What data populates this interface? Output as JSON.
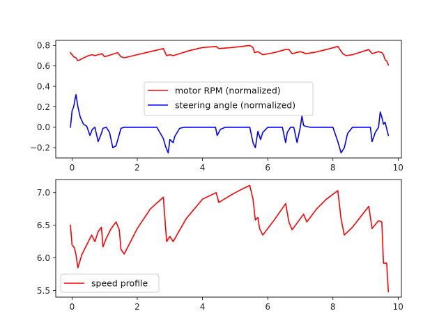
{
  "chart_data": [
    {
      "type": "line",
      "xlim": [
        -0.5,
        10.1
      ],
      "ylim": [
        -0.3,
        0.85
      ],
      "x_ticks": [
        0,
        2,
        4,
        6,
        8,
        10
      ],
      "x_tick_labels": [
        "0",
        "2",
        "4",
        "6",
        "8",
        "10"
      ],
      "y_ticks": [
        -0.2,
        0.0,
        0.2,
        0.4,
        0.6,
        0.8
      ],
      "y_tick_labels": [
        "−0.2",
        "0.0",
        "0.2",
        "0.4",
        "0.6",
        "0.8"
      ],
      "grid": false,
      "legend_position": "center",
      "series": [
        {
          "name": "motor RPM (normalized)",
          "color": "#ff0000",
          "x": [
            -0.05,
            0.0,
            0.05,
            0.12,
            0.18,
            0.3,
            0.5,
            0.62,
            0.7,
            0.8,
            0.92,
            1.0,
            1.2,
            1.4,
            1.5,
            1.6,
            2.0,
            2.4,
            2.8,
            2.9,
            3.0,
            3.1,
            3.3,
            3.6,
            4.0,
            4.42,
            4.5,
            4.9,
            5.2,
            5.45,
            5.55,
            5.6,
            5.7,
            5.85,
            6.2,
            6.55,
            6.65,
            6.75,
            7.0,
            7.1,
            7.15,
            7.4,
            7.8,
            8.15,
            8.3,
            8.4,
            8.6,
            9.1,
            9.2,
            9.4,
            9.5,
            9.55,
            9.6,
            9.65,
            9.7
          ],
          "values": [
            0.73,
            0.71,
            0.69,
            0.68,
            0.65,
            0.67,
            0.7,
            0.71,
            0.7,
            0.71,
            0.72,
            0.69,
            0.71,
            0.73,
            0.69,
            0.68,
            0.71,
            0.74,
            0.77,
            0.7,
            0.71,
            0.7,
            0.72,
            0.75,
            0.78,
            0.79,
            0.77,
            0.78,
            0.79,
            0.8,
            0.78,
            0.73,
            0.74,
            0.71,
            0.73,
            0.76,
            0.76,
            0.72,
            0.74,
            0.73,
            0.72,
            0.73,
            0.76,
            0.79,
            0.72,
            0.7,
            0.71,
            0.76,
            0.72,
            0.74,
            0.73,
            0.71,
            0.66,
            0.65,
            0.61
          ]
        },
        {
          "name": "steering angle (normalized)",
          "color": "#0000ff",
          "x": [
            -0.05,
            0.0,
            0.05,
            0.12,
            0.18,
            0.25,
            0.35,
            0.45,
            0.55,
            0.62,
            0.7,
            0.8,
            0.9,
            0.95,
            1.05,
            1.15,
            1.25,
            1.35,
            1.5,
            1.6,
            1.8,
            2.0,
            2.3,
            2.6,
            2.8,
            2.87,
            2.95,
            3.0,
            3.1,
            3.15,
            3.3,
            3.45,
            3.6,
            4.0,
            4.4,
            4.45,
            4.55,
            4.7,
            4.9,
            5.2,
            5.45,
            5.55,
            5.62,
            5.7,
            5.78,
            5.85,
            6.0,
            6.2,
            6.45,
            6.55,
            6.6,
            6.7,
            6.8,
            6.9,
            7.0,
            7.05,
            7.1,
            7.15,
            7.3,
            7.6,
            8.0,
            8.15,
            8.25,
            8.35,
            8.45,
            8.6,
            8.8,
            9.0,
            9.15,
            9.2,
            9.3,
            9.4,
            9.45,
            9.5,
            9.55,
            9.6,
            9.7
          ],
          "values": [
            0.0,
            0.16,
            0.2,
            0.32,
            0.2,
            0.1,
            0.03,
            0.01,
            -0.08,
            -0.02,
            0.0,
            -0.14,
            -0.06,
            -0.01,
            0.0,
            -0.05,
            -0.2,
            -0.18,
            -0.01,
            0.0,
            0.0,
            0.0,
            0.0,
            0.0,
            -0.11,
            -0.19,
            -0.25,
            -0.12,
            -0.15,
            -0.09,
            -0.01,
            0.0,
            0.0,
            0.0,
            0.0,
            -0.08,
            -0.02,
            0.0,
            0.0,
            0.0,
            0.0,
            -0.15,
            -0.2,
            -0.04,
            -0.12,
            -0.05,
            0.0,
            0.0,
            0.0,
            -0.15,
            -0.05,
            0.0,
            0.0,
            -0.15,
            0.0,
            0.11,
            0.02,
            0.01,
            0.0,
            0.0,
            0.0,
            -0.14,
            -0.25,
            -0.2,
            -0.06,
            0.0,
            0.0,
            0.0,
            0.0,
            -0.14,
            -0.05,
            0.0,
            0.15,
            0.1,
            0.03,
            0.05,
            -0.08
          ]
        }
      ]
    },
    {
      "type": "line",
      "xlim": [
        -0.5,
        10.1
      ],
      "ylim": [
        5.4,
        7.2
      ],
      "x_ticks": [
        0,
        2,
        4,
        6,
        8,
        10
      ],
      "x_tick_labels": [
        "0",
        "2",
        "4",
        "6",
        "8",
        "10"
      ],
      "y_ticks": [
        5.5,
        6.0,
        6.5,
        7.0
      ],
      "y_tick_labels": [
        "5.5",
        "6.0",
        "6.5",
        "7.0"
      ],
      "grid": false,
      "legend_position": "lower left",
      "series": [
        {
          "name": "speed profile",
          "color": "#ff0000",
          "x": [
            -0.05,
            0.0,
            0.08,
            0.12,
            0.18,
            0.3,
            0.45,
            0.6,
            0.7,
            0.8,
            0.9,
            0.95,
            1.05,
            1.2,
            1.35,
            1.45,
            1.5,
            1.6,
            2.0,
            2.4,
            2.8,
            2.9,
            3.0,
            3.1,
            3.5,
            4.0,
            4.42,
            4.5,
            4.9,
            5.2,
            5.45,
            5.55,
            5.62,
            5.7,
            5.75,
            5.85,
            6.2,
            6.55,
            6.65,
            6.75,
            7.0,
            7.1,
            7.2,
            7.5,
            7.8,
            8.15,
            8.25,
            8.35,
            8.6,
            9.1,
            9.2,
            9.4,
            9.5,
            9.55,
            9.6,
            9.65,
            9.7
          ],
          "values": [
            6.5,
            6.2,
            6.15,
            6.05,
            5.85,
            6.05,
            6.2,
            6.35,
            6.25,
            6.4,
            6.47,
            6.17,
            6.3,
            6.45,
            6.55,
            6.43,
            6.13,
            6.06,
            6.45,
            6.75,
            6.93,
            6.25,
            6.33,
            6.25,
            6.6,
            6.9,
            7.0,
            6.85,
            6.97,
            7.05,
            7.11,
            6.9,
            6.58,
            6.62,
            6.45,
            6.35,
            6.58,
            6.83,
            6.55,
            6.43,
            6.6,
            6.67,
            6.55,
            6.75,
            6.9,
            7.03,
            6.6,
            6.35,
            6.47,
            6.79,
            6.45,
            6.57,
            6.55,
            5.92,
            5.92,
            5.92,
            5.48
          ]
        }
      ]
    }
  ]
}
